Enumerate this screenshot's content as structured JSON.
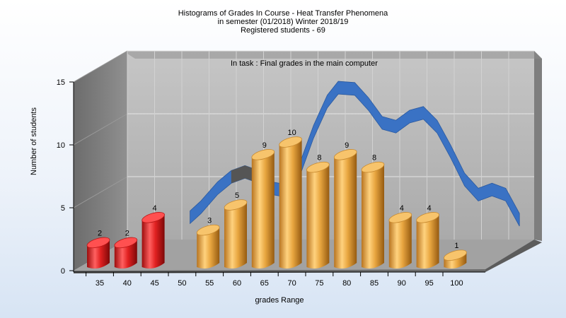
{
  "chart": {
    "title_lines": [
      "Histograms of Grades  In Course - Heat Transfer Phenomena",
      "in semester  (01/2018) Winter 2018/19",
      "Registered students - 69"
    ],
    "annotation": "In task : Final grades in the main computer"
  },
  "chart_data": {
    "type": "bar",
    "categories": [
      "35",
      "40",
      "45",
      "50",
      "55",
      "60",
      "65",
      "70",
      "75",
      "80",
      "85",
      "90",
      "95",
      "100"
    ],
    "values": [
      2,
      2,
      4,
      null,
      3,
      5,
      9,
      10,
      8,
      9,
      8,
      4,
      4,
      1
    ],
    "bar_colors": [
      "#e02020",
      "#e02020",
      "#e02020",
      null,
      "#e8a640",
      "#e8a640",
      "#e8a640",
      "#e8a640",
      "#e8a640",
      "#e8a640",
      "#e8a640",
      "#e8a640",
      "#e8a640",
      "#e8a640"
    ],
    "data_labels": [
      "2",
      "2",
      "4",
      "",
      "3",
      "5",
      "9",
      "10",
      "8",
      "9",
      "8",
      "4",
      "4",
      "1"
    ],
    "yticks": [
      "0",
      "5",
      "10",
      "15"
    ],
    "ylim": [
      0,
      15
    ],
    "xlabel": "grades Range",
    "ylabel": "Number of students",
    "grid": true,
    "curve": {
      "points": [
        [
          45,
          2
        ],
        [
          47,
          2.8
        ],
        [
          50,
          4.3
        ],
        [
          52.5,
          5.2
        ],
        [
          55,
          5.6
        ],
        [
          57,
          5.3
        ],
        [
          60,
          4.3
        ],
        [
          62.5,
          4.1
        ],
        [
          65,
          5.8
        ],
        [
          67.5,
          8.8
        ],
        [
          70,
          11.2
        ],
        [
          72,
          12.3
        ],
        [
          75,
          12.2
        ],
        [
          77.5,
          11
        ],
        [
          80,
          9.5
        ],
        [
          82.5,
          9.2
        ],
        [
          85,
          10
        ],
        [
          87.5,
          10.3
        ],
        [
          90,
          9.2
        ],
        [
          92.5,
          7.2
        ],
        [
          95,
          5
        ],
        [
          97.5,
          3.8
        ],
        [
          100,
          4.2
        ],
        [
          102.5,
          3.8
        ],
        [
          105,
          1.8
        ]
      ],
      "color": "#3a72c4",
      "low_segment_color": "#555555"
    }
  }
}
